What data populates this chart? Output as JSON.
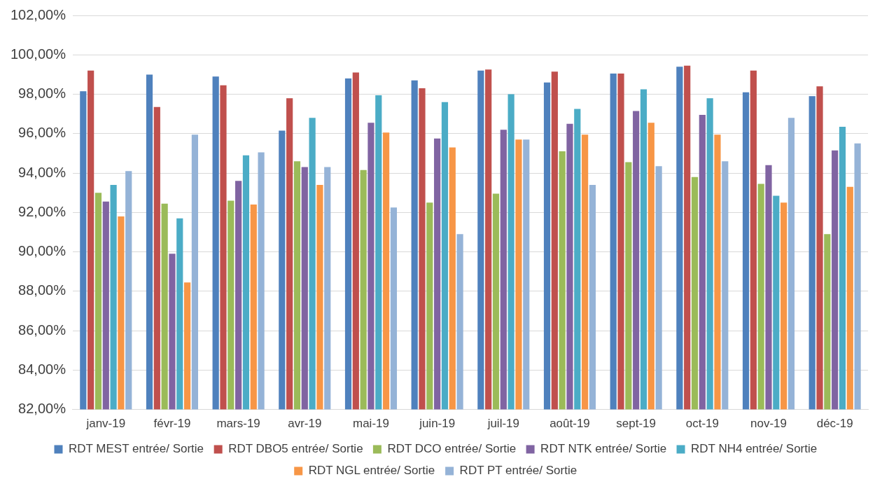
{
  "chart_data": {
    "type": "bar",
    "categories": [
      "janv-19",
      "févr-19",
      "mars-19",
      "avr-19",
      "mai-19",
      "juin-19",
      "juil-19",
      "août-19",
      "sept-19",
      "oct-19",
      "nov-19",
      "déc-19"
    ],
    "series": [
      {
        "name": "RDT MEST entrée/ Sortie",
        "color": "#4f81bd",
        "values": [
          98.15,
          99.0,
          98.9,
          96.15,
          98.8,
          98.7,
          99.2,
          98.6,
          99.05,
          99.4,
          98.1,
          97.9
        ]
      },
      {
        "name": "RDT DBO5 entrée/ Sortie",
        "color": "#c0504d",
        "values": [
          99.2,
          97.35,
          98.45,
          97.8,
          99.1,
          98.3,
          99.25,
          99.15,
          99.05,
          99.45,
          99.2,
          98.4
        ]
      },
      {
        "name": "RDT DCO entrée/ Sortie",
        "color": "#9bbb59",
        "values": [
          93.0,
          92.45,
          92.6,
          94.6,
          94.15,
          92.5,
          92.95,
          95.1,
          94.55,
          93.8,
          93.45,
          90.9
        ]
      },
      {
        "name": "RDT NTK entrée/ Sortie",
        "color": "#8064a2",
        "values": [
          92.55,
          89.9,
          93.6,
          94.3,
          96.55,
          95.75,
          96.2,
          96.5,
          97.15,
          96.95,
          94.4,
          95.15
        ]
      },
      {
        "name": "RDT NH4 entrée/ Sortie",
        "color": "#4bacc6",
        "values": [
          93.4,
          91.7,
          94.9,
          96.8,
          97.95,
          97.6,
          98.0,
          97.25,
          98.25,
          97.8,
          92.85,
          96.35
        ]
      },
      {
        "name": "RDT NGL entrée/ Sortie",
        "color": "#f79646",
        "values": [
          91.8,
          88.45,
          92.4,
          93.4,
          96.05,
          95.3,
          95.7,
          95.95,
          96.55,
          95.95,
          92.5,
          93.3
        ]
      },
      {
        "name": "RDT PT entrée/ Sortie",
        "color": "#95b3d7",
        "values": [
          94.1,
          95.95,
          95.05,
          94.3,
          92.25,
          90.9,
          95.7,
          93.4,
          94.35,
          94.6,
          96.8,
          95.5
        ]
      }
    ],
    "ylim": [
      82,
      102
    ],
    "yticks": [
      {
        "value": 82,
        "label": "82,00%"
      },
      {
        "value": 84,
        "label": "84,00%"
      },
      {
        "value": 86,
        "label": "86,00%"
      },
      {
        "value": 88,
        "label": "88,00%"
      },
      {
        "value": 90,
        "label": "90,00%"
      },
      {
        "value": 92,
        "label": "92,00%"
      },
      {
        "value": 94,
        "label": "94,00%"
      },
      {
        "value": 96,
        "label": "96,00%"
      },
      {
        "value": 98,
        "label": "98,00%"
      },
      {
        "value": 100,
        "label": "100,00%"
      },
      {
        "value": 102,
        "label": "102,00%"
      }
    ],
    "grid": "y",
    "legend": "bottom"
  }
}
